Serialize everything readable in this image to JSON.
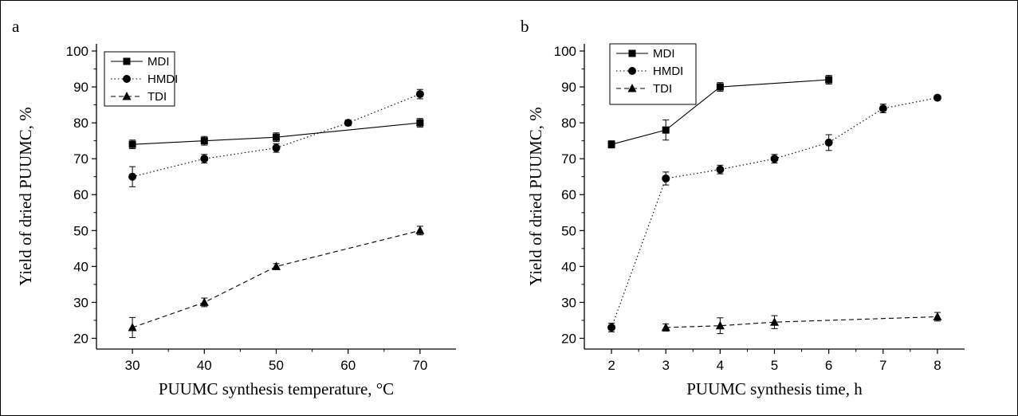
{
  "chart_data": [
    {
      "panel_label": "a",
      "type": "line",
      "xlabel": "PUUMC synthesis temperature, °C",
      "ylabel": "Yield of dried PUUMC, %",
      "xlim": [
        25,
        75
      ],
      "ylim": [
        17,
        102
      ],
      "xticks": [
        30,
        40,
        50,
        60,
        70
      ],
      "yticks": [
        20,
        30,
        40,
        50,
        60,
        70,
        80,
        90,
        100
      ],
      "legend_position": "top-left",
      "series": [
        {
          "name": "MDI",
          "marker": "square",
          "dash": "solid",
          "x": [
            30,
            40,
            50,
            70
          ],
          "y": [
            74,
            75,
            76,
            80
          ],
          "err": [
            1.2,
            1.2,
            1.2,
            1.2
          ]
        },
        {
          "name": "HMDI",
          "marker": "circle",
          "dash": "dotted",
          "x": [
            30,
            40,
            50,
            60,
            70
          ],
          "y": [
            65,
            70,
            73,
            80,
            88
          ],
          "err": [
            2.8,
            1.2,
            1.2,
            0.8,
            1.3
          ]
        },
        {
          "name": "TDI",
          "marker": "triangle",
          "dash": "dashed",
          "x": [
            30,
            40,
            50,
            70
          ],
          "y": [
            23,
            30,
            40,
            50
          ],
          "err": [
            2.8,
            1.2,
            0.8,
            1.2
          ]
        }
      ]
    },
    {
      "panel_label": "b",
      "type": "line",
      "xlabel": "PUUMC synthesis time, h",
      "ylabel": "Yield of dried PUUMC, %",
      "xlim": [
        1.5,
        8.5
      ],
      "ylim": [
        17,
        102
      ],
      "xticks": [
        2,
        3,
        4,
        5,
        6,
        7,
        8
      ],
      "yticks": [
        20,
        30,
        40,
        50,
        60,
        70,
        80,
        90,
        100
      ],
      "legend_position": "top-left",
      "series": [
        {
          "name": "MDI",
          "marker": "square",
          "dash": "solid",
          "x": [
            2,
            3,
            4,
            6
          ],
          "y": [
            74,
            78,
            90,
            92
          ],
          "err": [
            1.0,
            2.8,
            1.2,
            1.2
          ]
        },
        {
          "name": "HMDI",
          "marker": "circle",
          "dash": "dotted",
          "x": [
            2,
            3,
            4,
            5,
            6,
            7,
            8
          ],
          "y": [
            23,
            64.5,
            67,
            70,
            74.5,
            84,
            87
          ],
          "err": [
            1.2,
            1.8,
            1.2,
            1.2,
            2.2,
            1.2,
            0.6
          ]
        },
        {
          "name": "TDI",
          "marker": "triangle",
          "dash": "dashed",
          "x": [
            3,
            4,
            5,
            8
          ],
          "y": [
            23,
            23.5,
            24.5,
            26
          ],
          "err": [
            1.0,
            2.2,
            1.8,
            1.2
          ]
        }
      ]
    }
  ]
}
